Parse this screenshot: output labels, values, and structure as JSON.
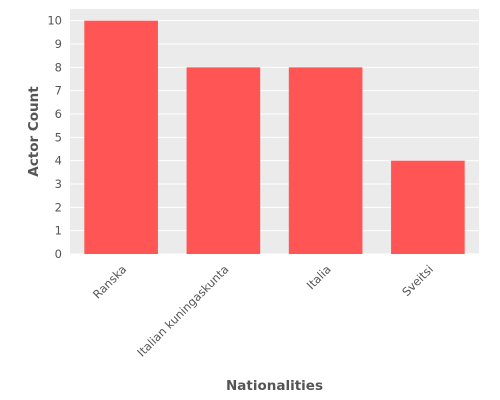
{
  "chart_data": {
    "type": "bar",
    "categories": [
      "Ranska",
      "Italian kuningaskunta",
      "Italia",
      "Sveitsi"
    ],
    "values": [
      10,
      8,
      8,
      4
    ],
    "title": "",
    "xlabel": "Nationalities",
    "ylabel": "Actor Count",
    "ylim": [
      0,
      10.5
    ],
    "yticks": [
      0,
      1,
      2,
      3,
      4,
      5,
      6,
      7,
      8,
      9,
      10
    ],
    "grid": true,
    "colors": {
      "bar": "#ff5555",
      "plot_background": "#ebebeb",
      "grid": "#ffffff",
      "text": "#555555"
    }
  }
}
